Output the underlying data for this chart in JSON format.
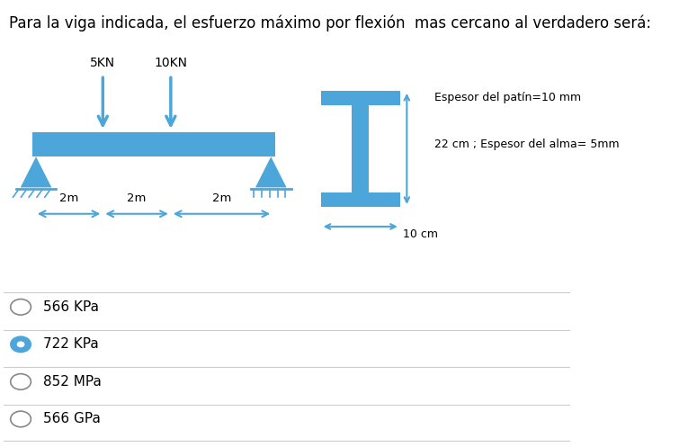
{
  "title": "Para la viga indicada, el esfuerzo máximo por flexión  mas cercano al verdadero será:",
  "title_color": "#000000",
  "title_fontsize": 12,
  "beam_color": "#4da6d9",
  "load1_label": "5KN",
  "load2_label": "10KN",
  "annotation1": "Espesor del patín=10 mm",
  "annotation2": "22 cm ; Espesor del alma= 5mm",
  "annotation_width": "10 cm",
  "options": [
    "566 KPa",
    "722 KPa",
    "852 MPa",
    "566 GPa"
  ],
  "selected_option": 1,
  "bg_color": "#ffffff",
  "text_color": "#000000",
  "separator_color": "#cccccc"
}
